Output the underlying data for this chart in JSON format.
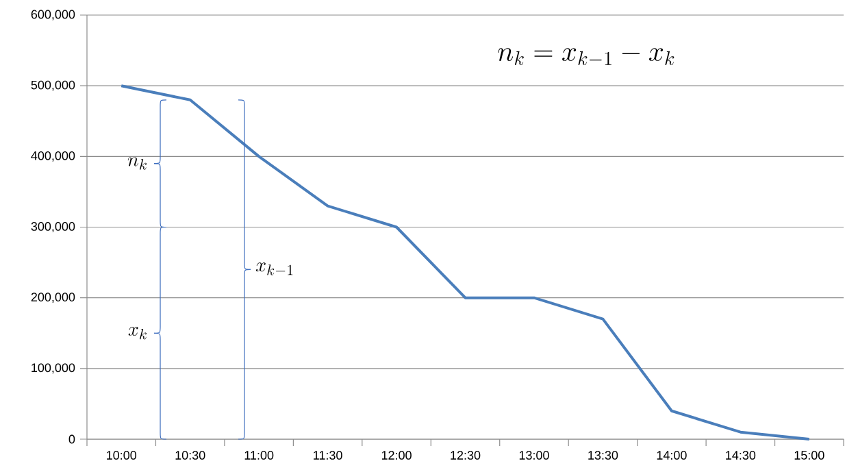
{
  "chart_data": {
    "type": "line",
    "categories": [
      "10:00",
      "10:30",
      "11:00",
      "11:30",
      "12:00",
      "12:30",
      "13:00",
      "13:30",
      "14:00",
      "14:30",
      "15:00"
    ],
    "values": [
      500000,
      480000,
      400000,
      330000,
      300000,
      200000,
      200000,
      170000,
      40000,
      10000,
      0
    ],
    "color": "#4a7ebb",
    "ylim": [
      0,
      600000
    ],
    "yticks": [
      0,
      {
        "value": 100000,
        "label": "100,000"
      },
      {
        "value": 200000,
        "label": "200,000"
      },
      {
        "value": 300000,
        "label": "300,000"
      },
      {
        "value": 400000,
        "label": "400,000"
      },
      {
        "value": 500000,
        "label": "500,000"
      },
      {
        "value": 600000,
        "label": "600,000"
      }
    ],
    "grid": "y",
    "annotations": [
      "n_k",
      "x_k",
      "x_{k-1}",
      "n_k = x_{k-1} - x_k"
    ]
  }
}
